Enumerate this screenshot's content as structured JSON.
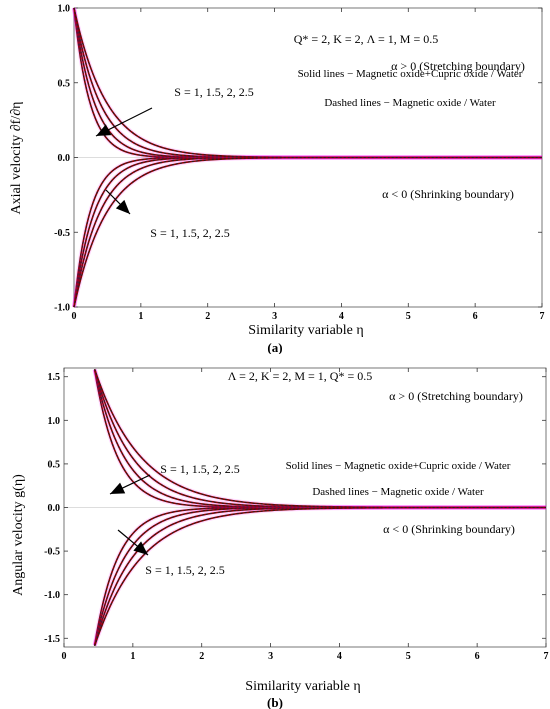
{
  "chart_data": [
    {
      "type": "line",
      "panel_caption": "(a)",
      "xlabel": "Similarity variable η",
      "ylabel": "Axial velocity ∂f/∂η",
      "xlim": [
        0,
        7
      ],
      "ylim": [
        -1,
        1
      ],
      "x_ticks": [
        0,
        1,
        2,
        3,
        4,
        5,
        6,
        7
      ],
      "y_ticks": [
        -1.0,
        -0.5,
        0.0,
        0.5,
        1.0
      ],
      "y_tick_labels": [
        "-1.0",
        "-0.5",
        "0.0",
        "0.5",
        "1.0"
      ],
      "parameters_label": "Q* = 2, K = 2, Λ = 1, M = 0.5",
      "annotations": {
        "stretching": "α > 0 (Stretching boundary)",
        "shrinking": "α < 0 (Shrinking boundary)",
        "solid_lines": "Solid lines − Magnetic oxide+Cupric oxide / Water",
        "dashed_lines": "Dashed lines − Magnetic oxide / Water",
        "s_upper": "S = 1, 1.5, 2, 2.5",
        "s_lower": "S = 1, 1.5, 2, 2.5"
      },
      "series": [
        {
          "values_upper_start": 1.0,
          "values_lower_start": -1.0,
          "decay_rate": 4.2
        },
        {
          "values_upper_start": 1.0,
          "values_lower_start": -1.0,
          "decay_rate": 3.3
        },
        {
          "values_upper_start": 1.0,
          "values_lower_start": -1.0,
          "decay_rate": 2.6
        },
        {
          "values_upper_start": 1.0,
          "values_lower_start": -1.0,
          "decay_rate": 2.05
        }
      ],
      "line_colors": {
        "solid": "#8b0000",
        "dashed": "#222222",
        "glow": "#ff00ff"
      }
    },
    {
      "type": "line",
      "panel_caption": "(b)",
      "xlabel": "Similarity variable η",
      "ylabel": "Angular velocity g(η)",
      "xlim": [
        0,
        7
      ],
      "ylim": [
        -1.6,
        1.6
      ],
      "x_ticks": [
        0,
        1,
        2,
        3,
        4,
        5,
        6,
        7
      ],
      "y_ticks": [
        -1.5,
        -1.0,
        -0.5,
        0.0,
        0.5,
        1.0,
        1.5
      ],
      "y_tick_labels": [
        "-1.5",
        "-1.0",
        "-0.5",
        "0.0",
        "0.5",
        "1.0",
        "1.5"
      ],
      "parameters_label": "Λ = 2, K = 2, M = 1, Q* = 0.5",
      "annotations": {
        "stretching": "α > 0 (Stretching boundary)",
        "shrinking": "α < 0 (Shrinking boundary)",
        "solid_lines": "Solid lines − Magnetic oxide+Cupric oxide / Water",
        "dashed_lines": "Dashed lines − Magnetic oxide / Water",
        "s_upper": "S  = 1, 1.5, 2, 2.5",
        "s_lower": "S = 1, 1.5, 2, 2.5"
      },
      "series": [
        {
          "decay_rate": 5.0
        },
        {
          "decay_rate": 3.9
        },
        {
          "decay_rate": 3.1
        },
        {
          "decay_rate": 2.5
        }
      ],
      "line_colors": {
        "solid": "#8b0000",
        "dashed": "#222222",
        "glow": "#ff00ff"
      }
    }
  ]
}
